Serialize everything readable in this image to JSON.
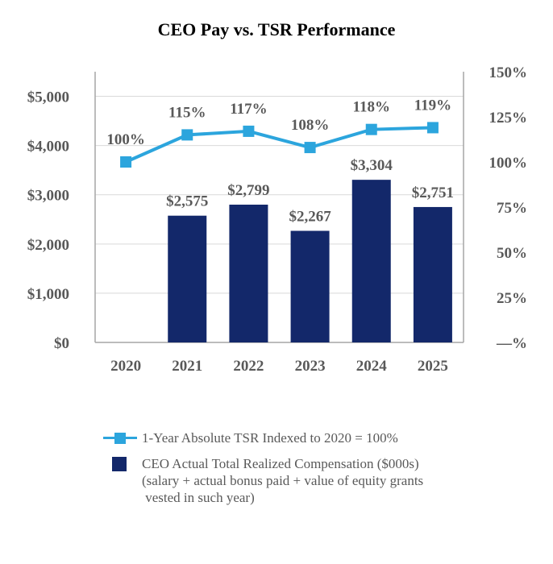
{
  "chart_data": {
    "type": "bar",
    "title": "CEO Pay vs. TSR Performance",
    "categories": [
      "2020",
      "2021",
      "2022",
      "2023",
      "2024",
      "2025"
    ],
    "bar_series": {
      "name": "CEO Actual Total Realized Compensation ($000s) (salary + actual bonus paid + value of equity grants vested in such year)",
      "values": [
        null,
        2575,
        2799,
        2267,
        3304,
        2751
      ],
      "labels": [
        "",
        "$2,575",
        "$2,799",
        "$2,267",
        "$3,304",
        "$2,751"
      ],
      "color": "#13286a"
    },
    "line_series": {
      "name": "1-Year Absolute TSR Indexed to 2020 = 100%",
      "values": [
        100,
        115,
        117,
        108,
        118,
        119
      ],
      "labels": [
        "100%",
        "115%",
        "117%",
        "108%",
        "118%",
        "119%"
      ],
      "color": "#2ca5dd"
    },
    "y_left": {
      "ylim": [
        0,
        5500
      ],
      "ticks": [
        0,
        1000,
        2000,
        3000,
        4000,
        5000
      ],
      "tick_labels": [
        "$0",
        "$1,000",
        "$2,000",
        "$3,000",
        "$4,000",
        "$5,000"
      ]
    },
    "y_right": {
      "ylim": [
        0,
        150
      ],
      "ticks": [
        0,
        25,
        50,
        75,
        100,
        125,
        150
      ],
      "tick_labels": [
        "—%",
        "25%",
        "50%",
        "75%",
        "100%",
        "125%",
        "150%"
      ]
    },
    "grid": true,
    "legend_position": "bottom"
  },
  "legend": {
    "line_label": "1-Year Absolute TSR Indexed to 2020 = 100%",
    "bar_label_line1": "CEO Actual Total Realized Compensation ($000s)",
    "bar_label_line2": "(salary + actual bonus paid + value of equity grants",
    "bar_label_line3": " vested in such year)"
  }
}
